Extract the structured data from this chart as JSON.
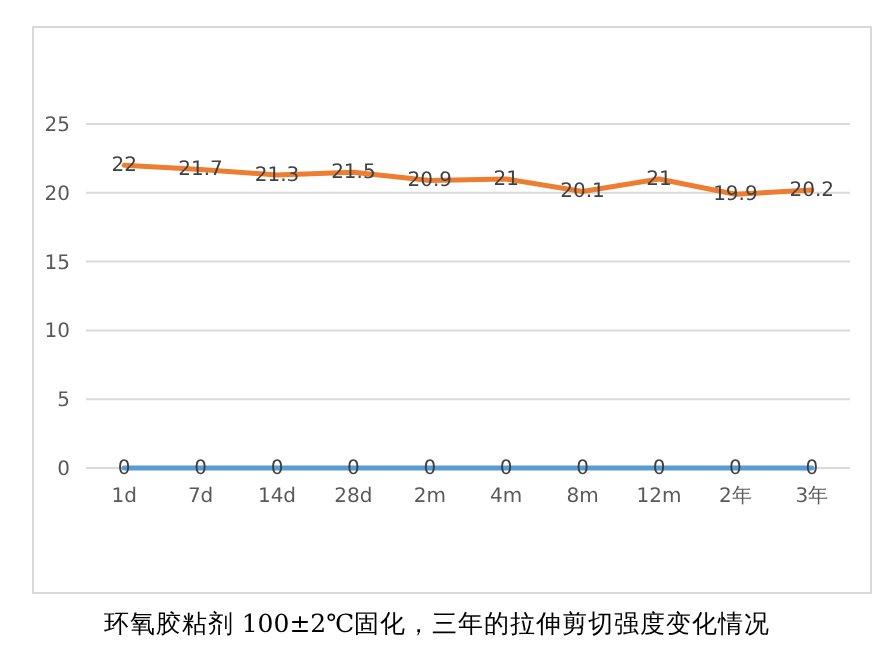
{
  "chart_data": {
    "type": "line",
    "title": "环氧胶粘剂 100±2℃固化，三年的拉伸剪切强度变化情况",
    "categories": [
      "1d",
      "7d",
      "14d",
      "28d",
      "2m",
      "4m",
      "8m",
      "12m",
      "2年",
      "3年"
    ],
    "series": [
      {
        "color": "#ed7d31",
        "values": [
          22,
          21.7,
          21.3,
          21.5,
          20.9,
          21,
          20.1,
          21,
          19.9,
          20.2
        ]
      },
      {
        "color": "#5b9bd5",
        "values": [
          0,
          0,
          0,
          0,
          0,
          0,
          0,
          0,
          0,
          0
        ]
      }
    ],
    "ylim": [
      0,
      25
    ],
    "yticks": [
      0,
      5,
      10,
      15,
      20,
      25
    ],
    "grid": "y",
    "data_labels": true,
    "marker": "none",
    "line_style": "solid"
  }
}
